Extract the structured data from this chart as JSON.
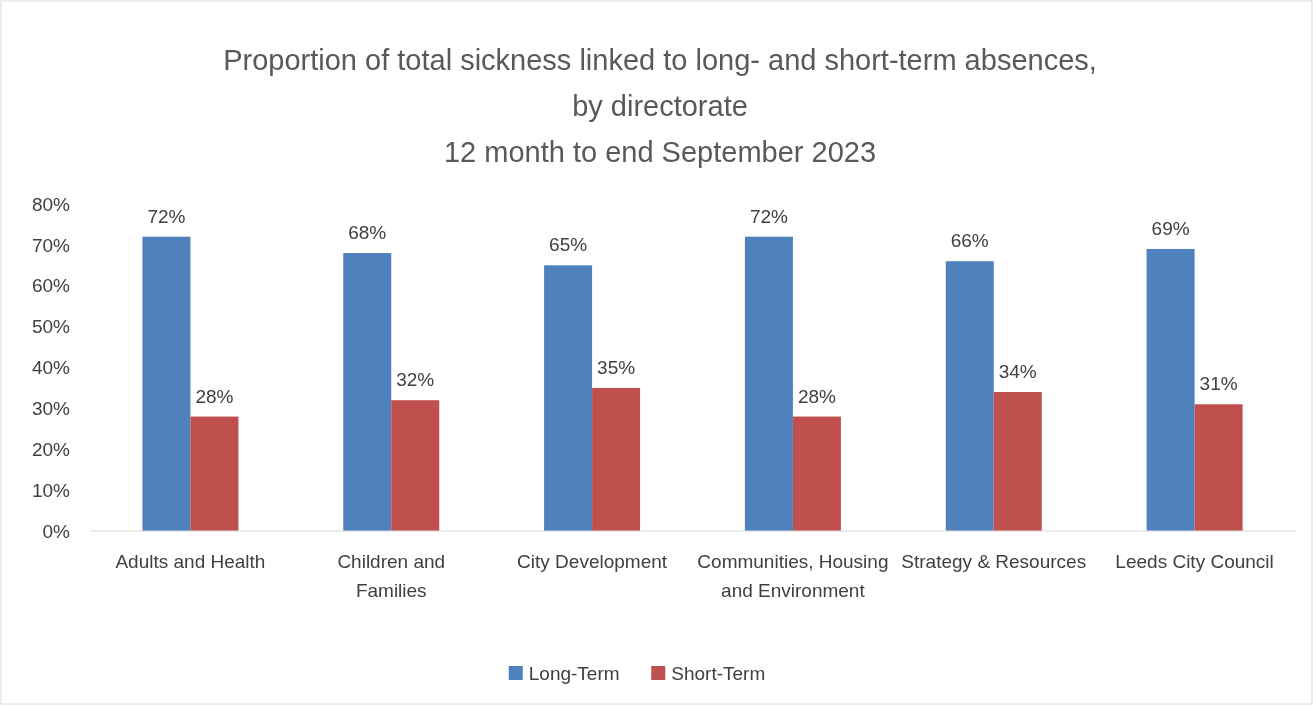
{
  "chart_data": {
    "type": "bar",
    "title": "Proportion of total sickness linked to long- and short-term absences,\nby directorate\n12 month to end September 2023",
    "categories": [
      "Adults and Health",
      "Children and Families",
      "City Development",
      "Communities, Housing and Environment",
      "Strategy & Resources",
      "Leeds City Council"
    ],
    "series": [
      {
        "name": "Long-Term",
        "color": "#4f81bd",
        "values": [
          72,
          68,
          65,
          72,
          66,
          69
        ],
        "value_labels": [
          "72%",
          "68%",
          "65%",
          "72%",
          "66%",
          "69%"
        ]
      },
      {
        "name": "Short-Term",
        "color": "#c0504d",
        "values": [
          28,
          32,
          35,
          28,
          34,
          31
        ],
        "value_labels": [
          "28%",
          "32%",
          "35%",
          "28%",
          "34%",
          "31%"
        ]
      }
    ],
    "ylim": [
      0,
      80
    ],
    "yticks": [
      {
        "value": 0,
        "label": "0%"
      },
      {
        "value": 10,
        "label": "10%"
      },
      {
        "value": 20,
        "label": "20%"
      },
      {
        "value": 30,
        "label": "30%"
      },
      {
        "value": 40,
        "label": "40%"
      },
      {
        "value": 50,
        "label": "50%"
      },
      {
        "value": 60,
        "label": "60%"
      },
      {
        "value": 70,
        "label": "70%"
      },
      {
        "value": 80,
        "label": "80%"
      }
    ],
    "grid": false,
    "legend": "bottom"
  }
}
